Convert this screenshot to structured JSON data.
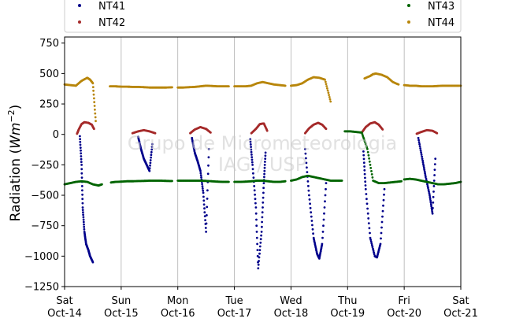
{
  "chart_data": {
    "type": "scatter",
    "ylabel": "Radiation (Wm⁻²)",
    "ylabel_parts": [
      "Radiation (",
      "Wm",
      "−2",
      ")"
    ],
    "watermark": [
      "Grupo de Micrometeorologia",
      "IAG / USP"
    ],
    "ylim": [
      -1250,
      800
    ],
    "yticks": [
      750,
      500,
      250,
      0,
      -250,
      -500,
      -750,
      -1000,
      -1250
    ],
    "ytick_labels": [
      "750",
      "500",
      "250",
      "0",
      "−250",
      "−500",
      "−750",
      "−1000",
      "−1250"
    ],
    "xlim_days": [
      0,
      7
    ],
    "xtick_labels": [
      [
        "Sat",
        "Oct-14"
      ],
      [
        "Sun",
        "Oct-15"
      ],
      [
        "Mon",
        "Oct-16"
      ],
      [
        "Tue",
        "Oct-17"
      ],
      [
        "Wed",
        "Oct-18"
      ],
      [
        "Thu",
        "Oct-19"
      ],
      [
        "Fri",
        "Oct-20"
      ],
      [
        "Sat",
        "Oct-21"
      ]
    ],
    "grid": "vertical",
    "legend_placement": "top",
    "series": [
      {
        "name": "NT41",
        "color": "#00008b",
        "values": [
          {
            "day": "Oct-14",
            "x": [
              0.27,
              0.3,
              0.32,
              0.35,
              0.38,
              0.42,
              0.45,
              0.5
            ],
            "y": [
              -15,
              -250,
              -600,
              -800,
              -900,
              -950,
              -1000,
              -1050
            ]
          },
          {
            "day": "Oct-15",
            "x": [
              1.3,
              1.35,
              1.4,
              1.45,
              1.5,
              1.55
            ],
            "y": [
              -20,
              -120,
              -200,
              -250,
              -300,
              -80
            ]
          },
          {
            "day": "Oct-16",
            "x": [
              2.25,
              2.3,
              2.35,
              2.4,
              2.45,
              2.5,
              2.55
            ],
            "y": [
              -30,
              -150,
              -220,
              -300,
              -480,
              -800,
              -120
            ]
          },
          {
            "day": "Oct-17",
            "x": [
              3.28,
              3.32,
              3.38,
              3.42,
              3.48,
              3.52,
              3.55
            ],
            "y": [
              -40,
              -250,
              -600,
              -1100,
              -800,
              -400,
              -150
            ]
          },
          {
            "day": "Oct-18",
            "x": [
              4.25,
              4.32,
              4.4,
              4.46,
              4.5,
              4.55,
              4.62
            ],
            "y": [
              -120,
              -500,
              -850,
              -980,
              -1020,
              -900,
              -400
            ]
          },
          {
            "day": "Oct-19",
            "x": [
              5.28,
              5.32,
              5.4,
              5.48,
              5.52,
              5.58,
              5.65
            ],
            "y": [
              -140,
              -450,
              -850,
              -1000,
              -1010,
              -900,
              -450
            ]
          },
          {
            "day": "Oct-20",
            "x": [
              6.25,
              6.32,
              6.38,
              6.45,
              6.5,
              6.55
            ],
            "y": [
              -30,
              -200,
              -350,
              -500,
              -650,
              -200
            ]
          }
        ]
      },
      {
        "name": "NT42",
        "color": "#a52a2a",
        "values": [
          {
            "day": "Oct-14",
            "x": [
              0.22,
              0.25,
              0.3,
              0.35,
              0.42,
              0.48,
              0.52
            ],
            "y": [
              5,
              40,
              85,
              100,
              95,
              80,
              45
            ]
          },
          {
            "day": "Oct-15",
            "x": [
              1.2,
              1.3,
              1.4,
              1.5,
              1.6
            ],
            "y": [
              10,
              25,
              35,
              25,
              10
            ]
          },
          {
            "day": "Oct-16",
            "x": [
              2.22,
              2.3,
              2.4,
              2.5,
              2.58
            ],
            "y": [
              10,
              40,
              60,
              45,
              15
            ]
          },
          {
            "day": "Oct-17",
            "x": [
              3.3,
              3.38,
              3.45,
              3.52,
              3.58
            ],
            "y": [
              10,
              45,
              85,
              90,
              30
            ]
          },
          {
            "day": "Oct-18",
            "x": [
              4.25,
              4.32,
              4.4,
              4.48,
              4.55,
              4.62
            ],
            "y": [
              10,
              50,
              80,
              95,
              80,
              45
            ]
          },
          {
            "day": "Oct-19",
            "x": [
              5.25,
              5.32,
              5.4,
              5.48,
              5.55,
              5.62
            ],
            "y": [
              15,
              60,
              90,
              100,
              80,
              40
            ]
          },
          {
            "day": "Oct-20",
            "x": [
              6.22,
              6.3,
              6.4,
              6.5,
              6.58
            ],
            "y": [
              5,
              20,
              35,
              30,
              10
            ]
          }
        ]
      },
      {
        "name": "NT43",
        "color": "#006400",
        "values": [
          {
            "day": "Oct-14",
            "x": [
              0.0,
              0.1,
              0.2,
              0.3,
              0.4,
              0.5,
              0.6,
              0.66
            ],
            "y": [
              -410,
              -400,
              -390,
              -385,
              -390,
              -410,
              -420,
              -410
            ]
          },
          {
            "day": "Oct-15",
            "x": [
              0.82,
              0.9,
              1.0,
              1.1,
              1.2,
              1.3,
              1.4,
              1.5,
              1.6,
              1.7,
              1.8,
              1.9
            ],
            "y": [
              -395,
              -390,
              -388,
              -385,
              -385,
              -383,
              -382,
              -380,
              -380,
              -380,
              -382,
              -383
            ]
          },
          {
            "day": "Oct-16",
            "x": [
              2.0,
              2.1,
              2.2,
              2.3,
              2.4,
              2.5,
              2.6,
              2.7,
              2.8,
              2.9
            ],
            "y": [
              -380,
              -380,
              -380,
              -380,
              -380,
              -382,
              -385,
              -388,
              -390,
              -390
            ]
          },
          {
            "day": "Oct-17",
            "x": [
              3.0,
              3.1,
              3.2,
              3.3,
              3.4,
              3.5,
              3.6,
              3.7,
              3.8,
              3.9
            ],
            "y": [
              -390,
              -390,
              -388,
              -385,
              -380,
              -380,
              -385,
              -390,
              -390,
              -385
            ]
          },
          {
            "day": "Oct-18",
            "x": [
              4.0,
              4.1,
              4.2,
              4.3,
              4.4,
              4.5,
              4.6,
              4.7,
              4.8,
              4.9
            ],
            "y": [
              -380,
              -370,
              -350,
              -340,
              -350,
              -360,
              -370,
              -380,
              -380,
              -380
            ]
          },
          {
            "day": "Oct-19",
            "x": [
              4.95,
              5.05,
              5.15,
              5.25,
              5.35,
              5.45,
              5.55,
              5.65,
              5.75,
              5.85,
              5.95
            ],
            "y": [
              25,
              25,
              20,
              15,
              -120,
              -380,
              -400,
              -400,
              -395,
              -390,
              -385
            ]
          },
          {
            "day": "Oct-20",
            "x": [
              6.0,
              6.1,
              6.2,
              6.3,
              6.4,
              6.5,
              6.6,
              6.7,
              6.8,
              6.9,
              7.0
            ],
            "y": [
              -370,
              -365,
              -370,
              -380,
              -390,
              -400,
              -410,
              -410,
              -405,
              -400,
              -390
            ]
          }
        ]
      },
      {
        "name": "NT44",
        "color": "#b8860b",
        "values": [
          {
            "day": "Oct-14",
            "x": [
              0.0,
              0.1,
              0.2,
              0.3,
              0.4,
              0.45,
              0.5,
              0.55
            ],
            "y": [
              410,
              405,
              400,
              440,
              465,
              450,
              420,
              110
            ]
          },
          {
            "day": "Oct-15",
            "x": [
              0.8,
              0.9,
              1.0,
              1.1,
              1.2,
              1.3,
              1.4,
              1.5,
              1.6,
              1.7,
              1.8,
              1.9
            ],
            "y": [
              395,
              395,
              392,
              392,
              390,
              390,
              388,
              385,
              385,
              385,
              385,
              387
            ]
          },
          {
            "day": "Oct-16",
            "x": [
              2.0,
              2.1,
              2.2,
              2.3,
              2.4,
              2.5,
              2.6,
              2.7,
              2.8,
              2.9
            ],
            "y": [
              385,
              385,
              388,
              390,
              395,
              400,
              398,
              395,
              395,
              395
            ]
          },
          {
            "day": "Oct-17",
            "x": [
              3.0,
              3.1,
              3.2,
              3.3,
              3.4,
              3.5,
              3.6,
              3.7,
              3.8,
              3.9
            ],
            "y": [
              395,
              395,
              395,
              400,
              420,
              430,
              420,
              410,
              405,
              400
            ]
          },
          {
            "day": "Oct-18",
            "x": [
              4.0,
              4.1,
              4.2,
              4.3,
              4.4,
              4.5,
              4.6,
              4.7
            ],
            "y": [
              400,
              405,
              420,
              450,
              470,
              465,
              450,
              270
            ]
          },
          {
            "day": "Oct-19",
            "x": [
              5.3,
              5.4,
              5.45,
              5.5,
              5.6,
              5.7,
              5.8,
              5.9
            ],
            "y": [
              460,
              480,
              495,
              500,
              490,
              470,
              430,
              410
            ]
          },
          {
            "day": "Oct-20",
            "x": [
              6.0,
              6.1,
              6.2,
              6.3,
              6.4,
              6.5,
              6.6,
              6.7,
              6.8,
              6.9,
              7.0
            ],
            "y": [
              405,
              400,
              400,
              395,
              395,
              395,
              398,
              400,
              400,
              400,
              400
            ]
          }
        ]
      }
    ]
  }
}
